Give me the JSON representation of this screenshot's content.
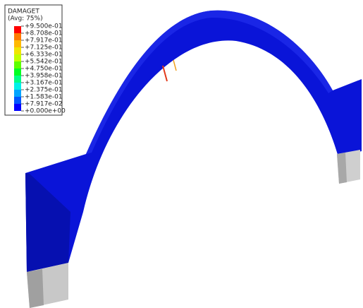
{
  "legend": {
    "title": "DAMAGET",
    "subtitle": "(Avg: 75%)",
    "labels": [
      "+9.500e-01",
      "+8.708e-01",
      "+7.917e-01",
      "+7.125e-01",
      "+6.333e-01",
      "+5.542e-01",
      "+4.750e-01",
      "+3.958e-01",
      "+3.167e-01",
      "+2.375e-01",
      "+1.583e-01",
      "+7.917e-02",
      "+0.000e+00"
    ]
  }
}
